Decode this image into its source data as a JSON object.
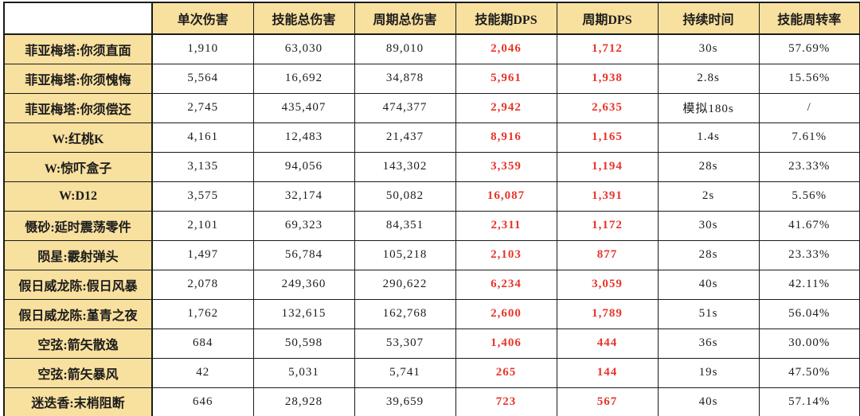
{
  "colors": {
    "header_bg": "#f8e09e",
    "red_dps": "#e8352a",
    "text": "#1c1c1c",
    "border": "#1a1a1a",
    "background": "#ffffff"
  },
  "chart_data": {
    "type": "table",
    "title": "",
    "corner_cell": "",
    "columns": [
      "单次伤害",
      "技能总伤害",
      "周期总伤害",
      "技能期DPS",
      "周期DPS",
      "持续时间",
      "技能周转率"
    ],
    "red_value_columns": [
      "技能期DPS",
      "周期DPS"
    ],
    "red_value_indexes": [
      3,
      4
    ],
    "rows": [
      {
        "label": "菲亚梅塔:你须直面",
        "values": [
          "1,910",
          "63,030",
          "89,010",
          "2,046",
          "1,712",
          "30s",
          "57.69%"
        ]
      },
      {
        "label": "菲亚梅塔:你须愧悔",
        "values": [
          "5,564",
          "16,692",
          "34,878",
          "5,961",
          "1,938",
          "2.8s",
          "15.56%"
        ]
      },
      {
        "label": "菲亚梅塔:你须偿还",
        "values": [
          "2,745",
          "435,407",
          "474,377",
          "2,942",
          "2,635",
          "模拟180s",
          "/"
        ]
      },
      {
        "label": "W:红桃K",
        "values": [
          "4,161",
          "12,483",
          "21,437",
          "8,916",
          "1,165",
          "1.4s",
          "7.61%"
        ]
      },
      {
        "label": "W:惊吓盒子",
        "values": [
          "3,135",
          "94,056",
          "143,302",
          "3,359",
          "1,194",
          "28s",
          "23.33%"
        ]
      },
      {
        "label": "W:D12",
        "values": [
          "3,575",
          "32,174",
          "50,082",
          "16,087",
          "1,391",
          "2s",
          "5.56%"
        ]
      },
      {
        "label": "慑砂:延时震荡零件",
        "values": [
          "2,101",
          "69,323",
          "84,351",
          "2,311",
          "1,172",
          "30s",
          "41.67%"
        ]
      },
      {
        "label": "陨星:霰射弹头",
        "values": [
          "1,497",
          "56,784",
          "105,218",
          "2,103",
          "877",
          "28s",
          "23.33%"
        ]
      },
      {
        "label": "假日威龙陈:假日风暴",
        "values": [
          "2,078",
          "249,360",
          "290,622",
          "6,234",
          "3,059",
          "40s",
          "42.11%"
        ]
      },
      {
        "label": "假日威龙陈:堇青之夜",
        "values": [
          "1,762",
          "132,615",
          "162,768",
          "2,600",
          "1,789",
          "51s",
          "56.04%"
        ]
      },
      {
        "label": "空弦:箭矢散逸",
        "values": [
          "684",
          "50,598",
          "53,307",
          "1,406",
          "444",
          "36s",
          "30.00%"
        ]
      },
      {
        "label": "空弦:箭矢暴风",
        "values": [
          "42",
          "5,031",
          "5,741",
          "265",
          "144",
          "19s",
          "47.50%"
        ]
      },
      {
        "label": "迷迭香:末梢阻断",
        "values": [
          "646",
          "28,928",
          "39,659",
          "723",
          "567",
          "40s",
          "57.14%"
        ]
      }
    ]
  }
}
